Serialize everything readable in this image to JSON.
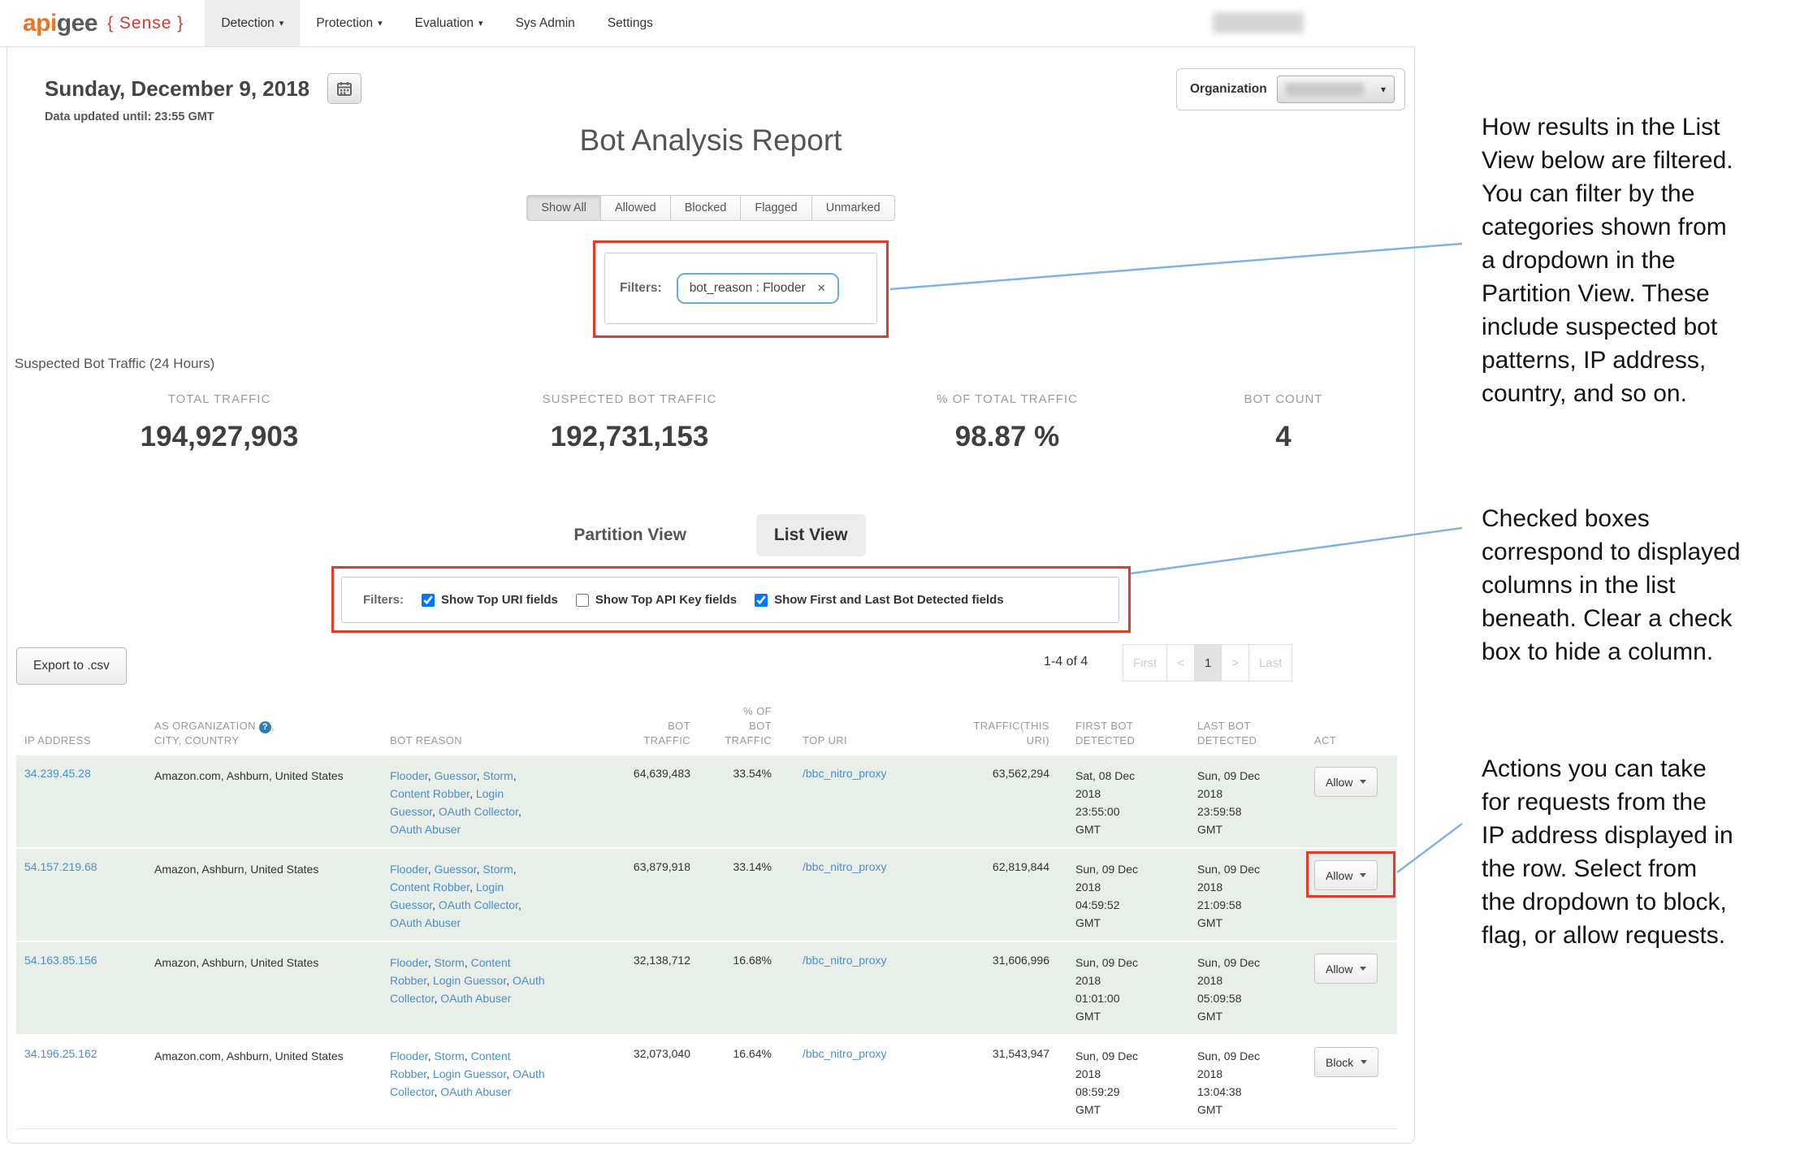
{
  "nav": {
    "logo_api": "api",
    "logo_gee": "gee",
    "logo_sense": "{ Sense }",
    "items": [
      {
        "label": "Detection",
        "caret": true,
        "active": true
      },
      {
        "label": "Protection",
        "caret": true,
        "active": false
      },
      {
        "label": "Evaluation",
        "caret": true,
        "active": false
      },
      {
        "label": "Sys Admin",
        "caret": false,
        "active": false
      },
      {
        "label": "Settings",
        "caret": false,
        "active": false
      }
    ]
  },
  "header": {
    "date": "Sunday, December 9, 2018",
    "updated": "Data updated until: 23:55 GMT",
    "organization_label": "Organization"
  },
  "report": {
    "title": "Bot Analysis Report",
    "tabs": [
      "Show All",
      "Allowed",
      "Blocked",
      "Flagged",
      "Unmarked"
    ],
    "active_tab": "Show All",
    "filters_label": "Filters:",
    "filter_pill": "bot_reason : Flooder",
    "filter_pill_close": "✕"
  },
  "stats": {
    "heading": "Suspected Bot Traffic (24 Hours)",
    "items": [
      {
        "label": "TOTAL TRAFFIC",
        "value": "194,927,903"
      },
      {
        "label": "SUSPECTED BOT TRAFFIC",
        "value": "192,731,153"
      },
      {
        "label": "% OF TOTAL TRAFFIC",
        "value": "98.87 %"
      },
      {
        "label": "BOT COUNT",
        "value": "4"
      }
    ]
  },
  "views": {
    "partition": "Partition View",
    "list": "List View",
    "active": "List View"
  },
  "list_filters": {
    "label": "Filters:",
    "checkboxes": [
      {
        "label": "Show Top URI fields",
        "checked": true
      },
      {
        "label": "Show Top API Key fields",
        "checked": false
      },
      {
        "label": "Show First and Last Bot Detected fields",
        "checked": true
      }
    ]
  },
  "toolbar": {
    "export_label": "Export to .csv"
  },
  "pagination": {
    "range": "1-4 of 4",
    "first": "First",
    "prev": "<",
    "page": "1",
    "next": ">",
    "last": "Last"
  },
  "table": {
    "headers": {
      "ip": [
        "IP ADDRESS"
      ],
      "org_line1": "AS ORGANIZATION",
      "org_suffix": ",",
      "org_line2": "CITY, COUNTRY",
      "reason": [
        "BOT REASON"
      ],
      "bot_traffic": [
        "BOT",
        "TRAFFIC"
      ],
      "pct": [
        "% OF",
        "BOT",
        "TRAFFIC"
      ],
      "top_uri": [
        "TOP URI"
      ],
      "traffic_uri": [
        "TRAFFIC(THIS",
        "URI)"
      ],
      "first": [
        "FIRST BOT",
        "DETECTED"
      ],
      "last": [
        "LAST BOT",
        "DETECTED"
      ],
      "act": [
        "ACT"
      ]
    },
    "rows": [
      {
        "ip": "34.239.45.28",
        "org": "Amazon.com, Ashburn, United States",
        "reasons": [
          "Flooder",
          "Guessor",
          "Storm",
          "Content Robber",
          "Login Guessor",
          "OAuth Collector",
          "OAuth Abuser"
        ],
        "bot_traffic": "64,639,483",
        "pct": "33.54%",
        "top_uri": "/bbc_nitro_proxy",
        "traffic_uri": "63,562,294",
        "first": [
          "Sat, 08 Dec",
          "2018",
          "23:55:00",
          "GMT"
        ],
        "last": [
          "Sun, 09 Dec",
          "2018",
          "23:59:58",
          "GMT"
        ],
        "action": "Allow"
      },
      {
        "ip": "54.157.219.68",
        "org": "Amazon, Ashburn, United States",
        "reasons": [
          "Flooder",
          "Guessor",
          "Storm",
          "Content Robber",
          "Login Guessor",
          "OAuth Collector",
          "OAuth Abuser"
        ],
        "bot_traffic": "63,879,918",
        "pct": "33.14%",
        "top_uri": "/bbc_nitro_proxy",
        "traffic_uri": "62,819,844",
        "first": [
          "Sun, 09 Dec",
          "2018",
          "04:59:52",
          "GMT"
        ],
        "last": [
          "Sun, 09 Dec",
          "2018",
          "21:09:58",
          "GMT"
        ],
        "action": "Allow"
      },
      {
        "ip": "54.163.85.156",
        "org": "Amazon, Ashburn, United States",
        "reasons": [
          "Flooder",
          "Storm",
          "Content Robber",
          "Login Guessor",
          "OAuth Collector",
          "OAuth Abuser"
        ],
        "bot_traffic": "32,138,712",
        "pct": "16.68%",
        "top_uri": "/bbc_nitro_proxy",
        "traffic_uri": "31,606,996",
        "first": [
          "Sun, 09 Dec",
          "2018",
          "01:01:00",
          "GMT"
        ],
        "last": [
          "Sun, 09 Dec",
          "2018",
          "05:09:58",
          "GMT"
        ],
        "action": "Allow"
      },
      {
        "ip": "34.196.25.162",
        "org": "Amazon.com, Ashburn, United States",
        "reasons": [
          "Flooder",
          "Storm",
          "Content Robber",
          "Login Guessor",
          "OAuth Collector",
          "OAuth Abuser"
        ],
        "bot_traffic": "32,073,040",
        "pct": "16.64%",
        "top_uri": "/bbc_nitro_proxy",
        "traffic_uri": "31,543,947",
        "first": [
          "Sun, 09 Dec",
          "2018",
          "08:59:29",
          "GMT"
        ],
        "last": [
          "Sun, 09 Dec",
          "2018",
          "13:04:38",
          "GMT"
        ],
        "action": "Block"
      }
    ]
  },
  "icons": {
    "caret_down": "▾",
    "help": "?",
    "calendar": "calendar-icon",
    "close": "✕"
  },
  "annotations": {
    "p1": [
      "How results in the List",
      "View below are filtered.",
      "You can filter by the",
      "categories shown from",
      "a dropdown in the",
      "Partition View. These",
      "include suspected bot",
      "patterns, IP address,",
      "country, and so on."
    ],
    "p2": [
      "Checked boxes",
      "correspond to displayed",
      "columns in the list",
      "beneath. Clear a check",
      "box to hide a column."
    ],
    "p3": [
      "Actions you can take",
      "for requests from the",
      "IP address displayed in",
      "the row. Select from",
      "the dropdown to block,",
      "flag, or allow requests."
    ]
  },
  "colors": {
    "link_blue": "#4a8fca",
    "annotation_red": "#e23b2e",
    "annotation_blue": "#7fb2e5",
    "row_green": "#e8eee8",
    "brand_orange": "#e87424",
    "brand_red": "#cf3b30"
  }
}
